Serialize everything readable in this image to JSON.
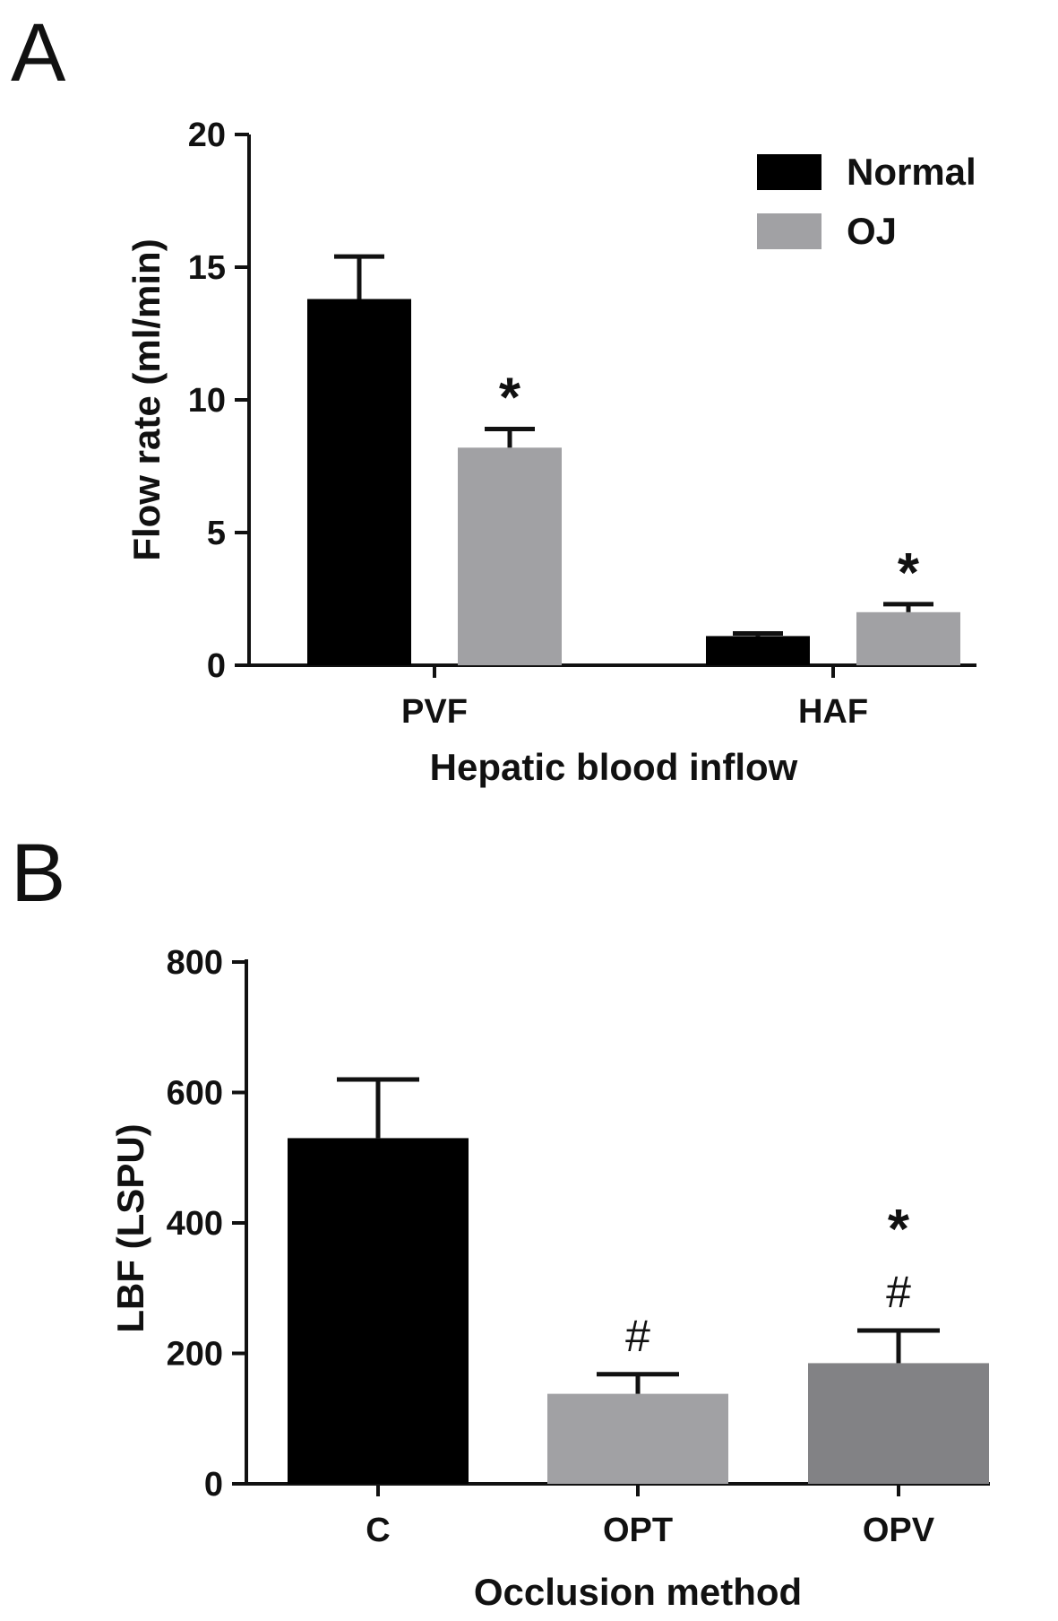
{
  "chart_data": [
    {
      "type": "bar",
      "panel": "A",
      "categories": [
        "PVF",
        "HAF"
      ],
      "series": [
        {
          "name": "Normal",
          "color": "#000000",
          "values": [
            13.8,
            1.1
          ],
          "errors": [
            1.6,
            0.1
          ]
        },
        {
          "name": "OJ",
          "color": "#a1a1a4",
          "values": [
            8.2,
            2.0
          ],
          "errors": [
            0.7,
            0.3
          ]
        }
      ],
      "annotations": [
        {
          "category": 0,
          "series": 1,
          "text": "*"
        },
        {
          "category": 1,
          "series": 1,
          "text": "*"
        }
      ],
      "xlabel": "Hepatic blood inflow",
      "ylabel": "Flow rate (ml/min)",
      "ylim": [
        0,
        20
      ],
      "yticks": [
        0,
        5,
        10,
        15,
        20
      ],
      "grid": false,
      "legend_position": "top-right"
    },
    {
      "type": "bar",
      "panel": "B",
      "categories": [
        "C",
        "OPT",
        "OPV"
      ],
      "colors": [
        "#000000",
        "#a1a1a4",
        "#828285"
      ],
      "values": [
        530,
        138,
        185
      ],
      "errors": [
        90,
        30,
        50
      ],
      "annotations": [
        {
          "category": 1,
          "text": "#"
        },
        {
          "category": 2,
          "text": "#"
        },
        {
          "category": 2,
          "text": "*"
        }
      ],
      "xlabel": "Occlusion method",
      "ylabel": "LBF (LSPU)",
      "ylim": [
        0,
        800
      ],
      "yticks": [
        0,
        200,
        400,
        600,
        800
      ],
      "grid": false
    }
  ]
}
